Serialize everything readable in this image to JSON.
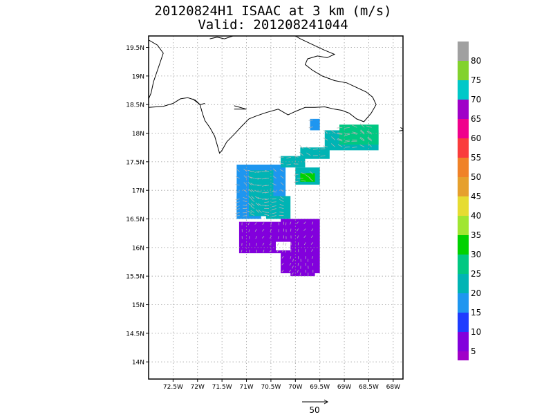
{
  "title": "20120824H1 ISAAC at 3 km (m/s)",
  "subtitle": "Valid: 201208241044",
  "map": {
    "lon_range": [
      -73.0,
      -67.8
    ],
    "lat_range": [
      13.7,
      19.7
    ],
    "lon_ticks": [
      {
        "value": -72.5,
        "label": "72.5W"
      },
      {
        "value": -72.0,
        "label": "72W"
      },
      {
        "value": -71.5,
        "label": "71.5W"
      },
      {
        "value": -71.0,
        "label": "71W"
      },
      {
        "value": -70.5,
        "label": "70.5W"
      },
      {
        "value": -70.0,
        "label": "70W"
      },
      {
        "value": -69.5,
        "label": "69.5W"
      },
      {
        "value": -69.0,
        "label": "69W"
      },
      {
        "value": -68.5,
        "label": "68.5W"
      },
      {
        "value": -68.0,
        "label": "68W"
      }
    ],
    "lat_ticks": [
      {
        "value": 19.5,
        "label": "19.5N"
      },
      {
        "value": 19.0,
        "label": "19N"
      },
      {
        "value": 18.5,
        "label": "18.5N"
      },
      {
        "value": 18.0,
        "label": "18N"
      },
      {
        "value": 17.5,
        "label": "17.5N"
      },
      {
        "value": 17.0,
        "label": "17N"
      },
      {
        "value": 16.5,
        "label": "16.5N"
      },
      {
        "value": 16.0,
        "label": "16N"
      },
      {
        "value": 15.5,
        "label": "15.5N"
      },
      {
        "value": 15.0,
        "label": "15N"
      },
      {
        "value": 14.5,
        "label": "14.5N"
      },
      {
        "value": 14.0,
        "label": "14N"
      }
    ],
    "grid": "dotted",
    "coastline": [
      [
        -73.0,
        19.63
      ],
      [
        -72.82,
        19.54
      ],
      [
        -72.7,
        19.4
      ],
      [
        -72.8,
        19.15
      ],
      [
        -72.9,
        18.9
      ],
      [
        -72.95,
        18.7
      ],
      [
        -73.0,
        18.6
      ]
    ],
    "coastline2": [
      [
        -73.0,
        18.45
      ],
      [
        -72.7,
        18.47
      ],
      [
        -72.5,
        18.52
      ],
      [
        -72.35,
        18.6
      ],
      [
        -72.2,
        18.62
      ],
      [
        -72.05,
        18.58
      ],
      [
        -71.95,
        18.5
      ],
      [
        -71.9,
        18.35
      ],
      [
        -71.85,
        18.22
      ],
      [
        -71.75,
        18.1
      ],
      [
        -71.65,
        17.95
      ],
      [
        -71.6,
        17.8
      ],
      [
        -71.55,
        17.65
      ],
      [
        -71.5,
        17.7
      ],
      [
        -71.4,
        17.85
      ],
      [
        -71.25,
        17.98
      ],
      [
        -71.1,
        18.12
      ],
      [
        -70.95,
        18.25
      ],
      [
        -70.8,
        18.3
      ],
      [
        -70.6,
        18.36
      ],
      [
        -70.35,
        18.42
      ],
      [
        -70.15,
        18.32
      ],
      [
        -70.0,
        18.38
      ],
      [
        -69.8,
        18.45
      ],
      [
        -69.6,
        18.45
      ],
      [
        -69.4,
        18.46
      ],
      [
        -69.2,
        18.42
      ],
      [
        -69.05,
        18.4
      ],
      [
        -68.9,
        18.35
      ],
      [
        -68.75,
        18.25
      ],
      [
        -68.6,
        18.2
      ],
      [
        -68.45,
        18.35
      ],
      [
        -68.35,
        18.5
      ],
      [
        -68.42,
        18.63
      ],
      [
        -68.55,
        18.72
      ],
      [
        -68.75,
        18.8
      ],
      [
        -68.95,
        18.88
      ],
      [
        -69.2,
        18.92
      ],
      [
        -69.45,
        19.0
      ],
      [
        -69.65,
        19.1
      ],
      [
        -69.8,
        19.2
      ],
      [
        -69.75,
        19.3
      ],
      [
        -69.55,
        19.35
      ],
      [
        -69.35,
        19.32
      ],
      [
        -69.2,
        19.38
      ],
      [
        -69.4,
        19.45
      ],
      [
        -69.65,
        19.55
      ],
      [
        -69.9,
        19.65
      ],
      [
        -70.0,
        19.7
      ]
    ],
    "coastline3": [
      [
        -71.05,
        19.7
      ],
      [
        -71.2,
        19.72
      ],
      [
        -71.45,
        19.65
      ],
      [
        -71.6,
        19.68
      ],
      [
        -71.75,
        19.65
      ]
    ],
    "island": [
      [
        -71.25,
        18.48
      ],
      [
        -71.0,
        18.42
      ],
      [
        -71.25,
        18.42
      ]
    ],
    "island2": [
      [
        -72.1,
        18.6
      ],
      [
        -71.95,
        18.5
      ],
      [
        -71.85,
        18.52
      ]
    ],
    "island_east": [
      [
        -67.85,
        18.1
      ],
      [
        -67.78,
        18.05
      ],
      [
        -67.88,
        18.04
      ]
    ]
  },
  "wind_data": {
    "units": "m/s",
    "blocks": [
      {
        "lon": [
          -71.2,
          -70.2
        ],
        "lat": [
          16.55,
          17.45
        ],
        "ws": 17
      },
      {
        "lon": [
          -71.2,
          -70.7
        ],
        "lat": [
          16.5,
          16.9
        ],
        "ws": 18
      },
      {
        "lon": [
          -70.95,
          -70.45
        ],
        "lat": [
          16.55,
          17.35
        ],
        "ws": 20
      },
      {
        "lon": [
          -70.6,
          -70.1
        ],
        "lat": [
          16.5,
          16.9
        ],
        "ws": 22
      },
      {
        "lon": [
          -70.3,
          -69.8
        ],
        "lat": [
          17.4,
          17.6
        ],
        "ws": 21
      },
      {
        "lon": [
          -69.9,
          -69.3
        ],
        "lat": [
          17.55,
          17.75
        ],
        "ws": 22
      },
      {
        "lon": [
          -69.4,
          -68.3
        ],
        "lat": [
          17.7,
          18.05
        ],
        "ws": 23
      },
      {
        "lon": [
          -69.1,
          -68.3
        ],
        "lat": [
          17.8,
          18.15
        ],
        "ws": 28
      },
      {
        "lon": [
          -69.7,
          -69.5
        ],
        "lat": [
          18.05,
          18.25
        ],
        "ws": 18
      },
      {
        "lon": [
          -70.0,
          -69.5
        ],
        "lat": [
          17.1,
          17.4
        ],
        "ws": 20
      },
      {
        "lon": [
          -69.9,
          -69.6
        ],
        "lat": [
          17.15,
          17.3
        ],
        "ws": 32
      },
      {
        "lon": [
          -71.15,
          -70.1
        ],
        "lat": [
          15.9,
          16.45
        ],
        "ws": 6
      },
      {
        "lon": [
          -70.3,
          -69.5
        ],
        "lat": [
          15.55,
          16.5
        ],
        "ws": 6
      },
      {
        "lon": [
          -70.1,
          -69.6
        ],
        "lat": [
          15.5,
          15.9
        ],
        "ws": 7
      }
    ],
    "gaps": [
      {
        "lon": [
          -70.4,
          -70.1
        ],
        "lat": [
          15.95,
          16.1
        ]
      }
    ],
    "reference_vector": {
      "label": "50",
      "value": 50
    }
  },
  "colorbar": {
    "labels": [
      "80",
      "75",
      "70",
      "65",
      "60",
      "55",
      "50",
      "45",
      "40",
      "35",
      "30",
      "25",
      "20",
      "15",
      "10",
      "5"
    ],
    "colors_top_to_bottom": [
      "#a0a0a0",
      "#82d22e",
      "#00c8c8",
      "#a000c8",
      "#f0008c",
      "#fa3c3c",
      "#f08228",
      "#e6a02d",
      "#e6dc32",
      "#a0e632",
      "#00d200",
      "#00c882",
      "#00b4b4",
      "#1e96f0",
      "#1e3cff",
      "#8200dc",
      "#a000c8"
    ],
    "bins": [
      80,
      75,
      70,
      65,
      60,
      55,
      50,
      45,
      40,
      35,
      30,
      25,
      20,
      15,
      10,
      5,
      0
    ]
  }
}
